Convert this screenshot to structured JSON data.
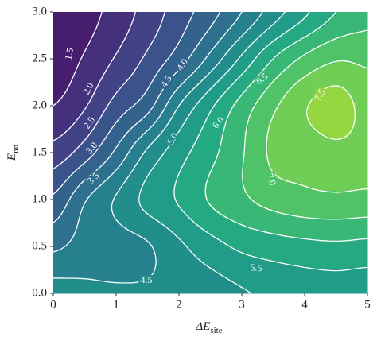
{
  "chart_data": {
    "type": "contour",
    "x_label": {
      "main": "ΔE",
      "sub": "site"
    },
    "y_label": {
      "main": "E",
      "sub": "nn"
    },
    "x": [
      0,
      0.5,
      1,
      1.5,
      2,
      2.5,
      3,
      3.5,
      4,
      4.5,
      5
    ],
    "y": [
      0,
      0.5,
      1,
      1.5,
      2,
      2.5,
      3
    ],
    "z": [
      [
        4.7,
        4.6,
        4.55,
        4.55,
        4.6,
        4.75,
        4.95,
        5.1,
        5.2,
        5.25,
        5.2
      ],
      [
        3.9,
        4.2,
        4.3,
        4.45,
        4.9,
        5.3,
        5.6,
        5.75,
        5.85,
        5.9,
        5.85
      ],
      [
        3.1,
        3.95,
        4.55,
        5.15,
        5.55,
        6.05,
        6.4,
        6.7,
        6.85,
        6.9,
        6.85
      ],
      [
        2.2,
        2.75,
        3.6,
        4.6,
        5.3,
        5.85,
        6.45,
        7.1,
        7.2,
        7.35,
        7.3
      ],
      [
        1.5,
        1.95,
        2.7,
        3.3,
        4.5,
        5.4,
        6.2,
        6.9,
        7.45,
        7.75,
        7.3
      ],
      [
        1.2,
        1.55,
        2.05,
        2.6,
        3.25,
        4.15,
        5.1,
        6.0,
        6.6,
        6.95,
        6.9
      ],
      [
        1.1,
        1.3,
        1.7,
        2.2,
        2.75,
        3.3,
        4.0,
        4.75,
        5.4,
        6.0,
        6.3
      ]
    ],
    "levels": [
      1.5,
      {
        "value": 2,
        "label": "2.0"
      },
      2.5,
      {
        "value": 3,
        "label": "3.0"
      },
      3.5,
      {
        "value": 4,
        "label": "4.0"
      },
      4.5,
      {
        "value": 5,
        "label": "5.0"
      },
      5.5,
      {
        "value": 6,
        "label": "6.0"
      },
      6.5,
      {
        "value": 7,
        "label": "7.0"
      },
      7.5
    ],
    "colormap": "viridis",
    "line_color": "#ffffff",
    "xlim": [
      0,
      5
    ],
    "ylim": [
      0,
      3
    ],
    "xticks": [
      0,
      1,
      2,
      3,
      4,
      5
    ],
    "yticks": [
      {
        "value": 0,
        "label": "0.0"
      },
      0.5,
      {
        "value": 1,
        "label": "1.0"
      },
      1.5,
      {
        "value": 2,
        "label": "2.0"
      },
      2.5,
      {
        "value": 3,
        "label": "3.0"
      }
    ]
  }
}
